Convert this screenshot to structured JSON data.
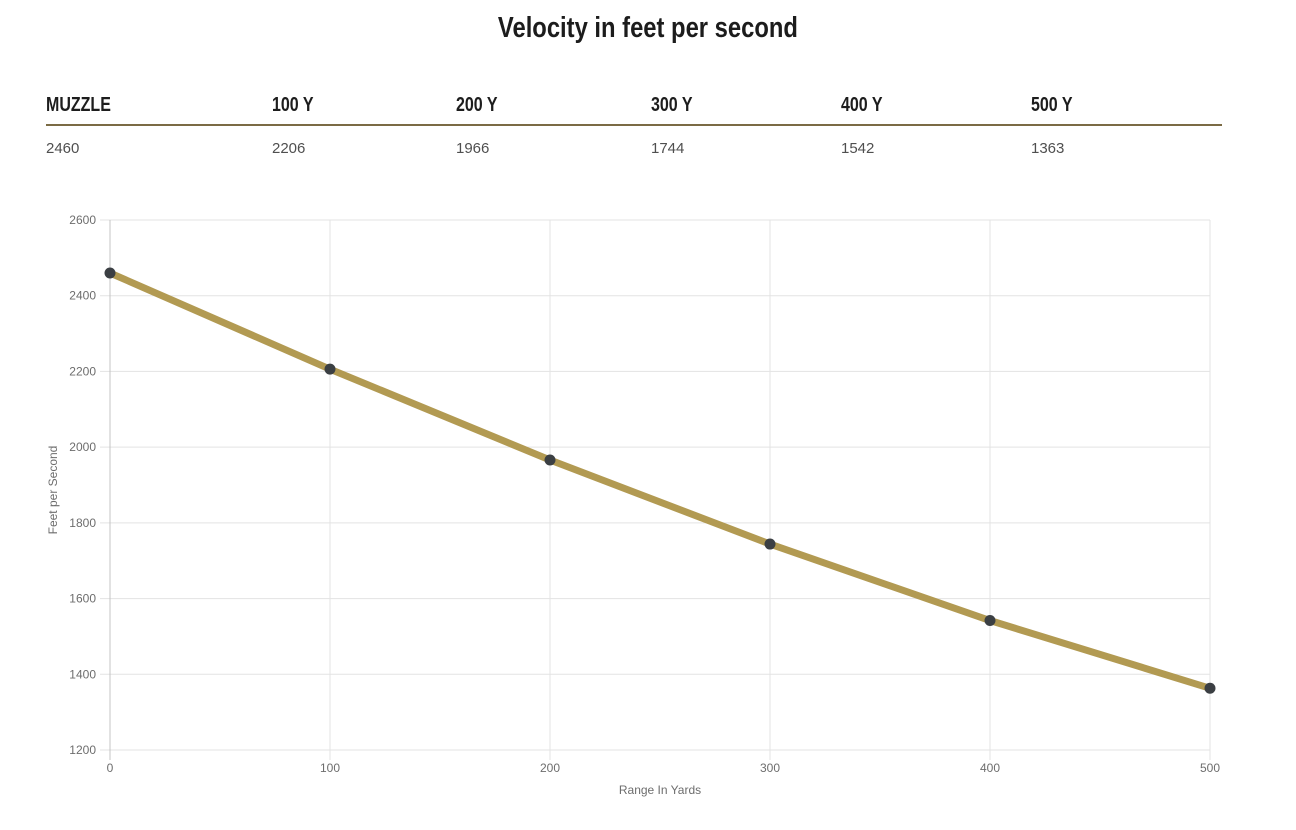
{
  "page": {
    "title": "Velocity in feet per second"
  },
  "table": {
    "headers": [
      "MUZZLE",
      "100 Y",
      "200 Y",
      "300 Y",
      "400 Y",
      "500 Y"
    ],
    "values": [
      "2460",
      "2206",
      "1966",
      "1744",
      "1542",
      "1363"
    ]
  },
  "chart_data": {
    "type": "line",
    "x": [
      0,
      100,
      200,
      300,
      400,
      500
    ],
    "series": [
      {
        "name": "Velocity",
        "values": [
          2460,
          2206,
          1966,
          1744,
          1542,
          1363
        ]
      }
    ],
    "title": "",
    "xlabel": "Range In Yards",
    "ylabel": "Feet per Second",
    "xlim": [
      0,
      500
    ],
    "ylim": [
      1200,
      2600
    ],
    "x_ticks": [
      0,
      100,
      200,
      300,
      400,
      500
    ],
    "y_ticks": [
      1200,
      1400,
      1600,
      1800,
      2000,
      2200,
      2400,
      2600
    ],
    "grid": true,
    "legend_position": "none",
    "line_color": "#b29a52",
    "point_color": "#3b3f43"
  },
  "colors": {
    "accent_rule": "#7b6b45",
    "grid": "#e3e3e3",
    "zero_line": "#c4c4c4",
    "tick_label": "#6d6d6d",
    "axis_title": "#6d6d6d",
    "title_text": "#1c1c1c",
    "value_text": "#4f4f4f"
  }
}
